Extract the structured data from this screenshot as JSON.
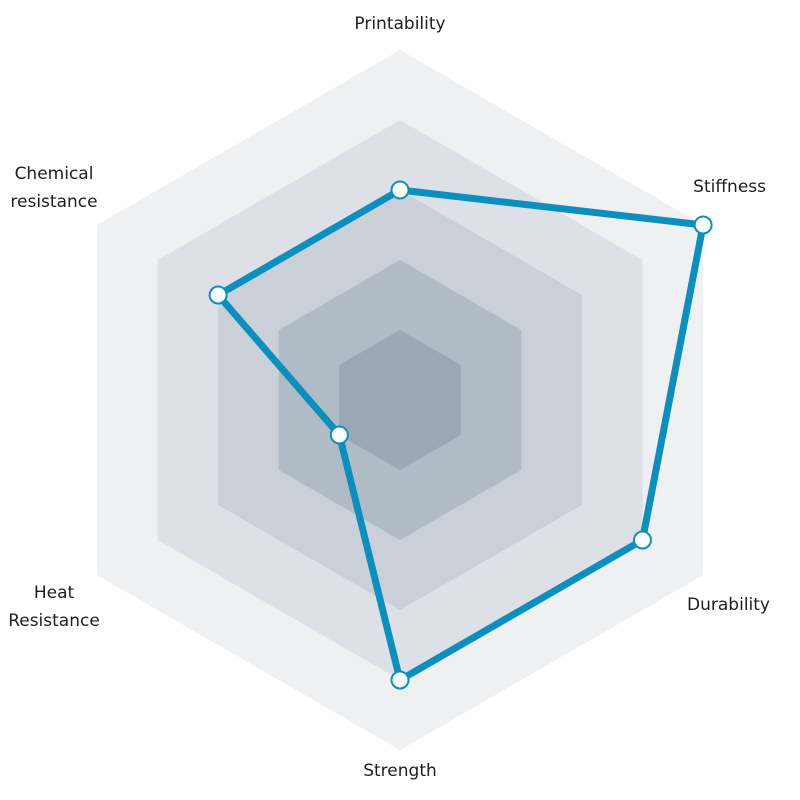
{
  "chart_data": {
    "type": "radar",
    "title": "",
    "axes": [
      {
        "label_lines": [
          "Printability"
        ],
        "value": 3
      },
      {
        "label_lines": [
          "Stiffness"
        ],
        "value": 5
      },
      {
        "label_lines": [
          "Durability"
        ],
        "value": 4
      },
      {
        "label_lines": [
          "Strength"
        ],
        "value": 4
      },
      {
        "label_lines": [
          "Heat",
          "Resistance"
        ],
        "value": 1
      },
      {
        "label_lines": [
          "Chemical",
          "resistance"
        ],
        "value": 3
      }
    ],
    "scale": {
      "min": 0,
      "max": 5,
      "levels": 5
    },
    "grid_colors": [
      "#eff0f2",
      "#dde1e7",
      "#c9d0d8",
      "#b1bbc6",
      "#9ba7b4"
    ],
    "series": [
      {
        "color": "#0a8fbf",
        "marker_fill": "#ffffff"
      }
    ]
  }
}
